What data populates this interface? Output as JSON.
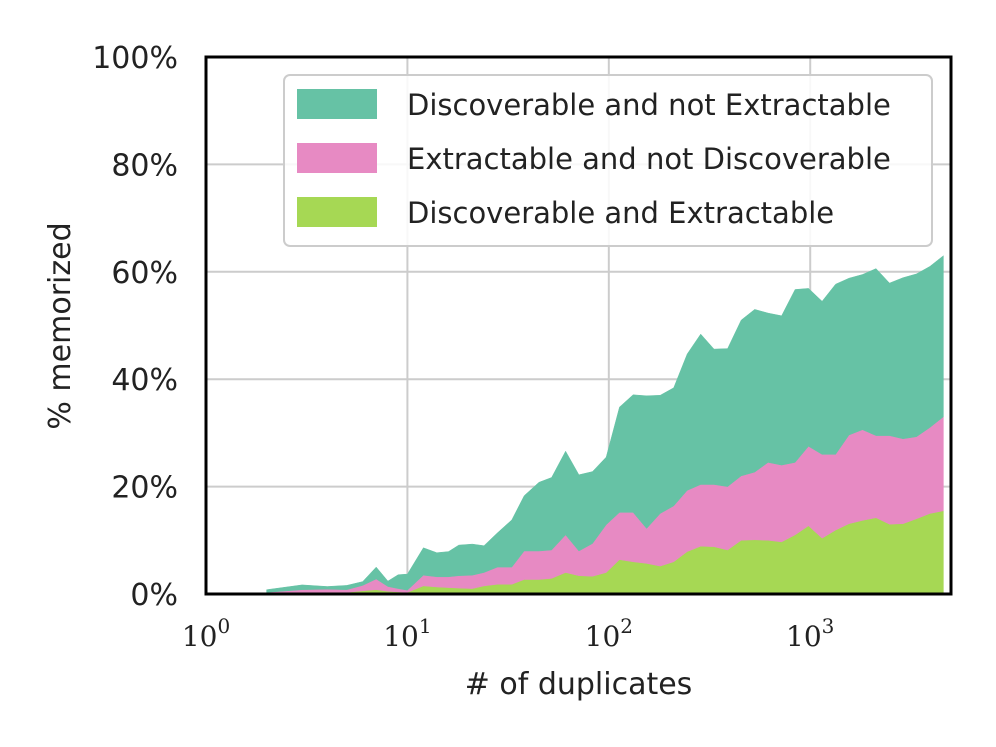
{
  "chart_data": {
    "type": "area",
    "stacked": true,
    "x_scale": "log",
    "xlabel": "# of duplicates",
    "ylabel": "% memorized",
    "xlim": [
      1,
      5000
    ],
    "ylim": [
      0,
      100
    ],
    "x_ticks": [
      {
        "base": "10",
        "exp": "0",
        "value": 1
      },
      {
        "base": "10",
        "exp": "1",
        "value": 10
      },
      {
        "base": "10",
        "exp": "2",
        "value": 100
      },
      {
        "base": "10",
        "exp": "3",
        "value": 1000
      }
    ],
    "y_ticks": [
      {
        "label": "0%",
        "value": 0
      },
      {
        "label": "20%",
        "value": 20
      },
      {
        "label": "40%",
        "value": 40
      },
      {
        "label": "60%",
        "value": 60
      },
      {
        "label": "80%",
        "value": 80
      },
      {
        "label": "100%",
        "value": 100
      }
    ],
    "grid": true,
    "legend_position": "top-right",
    "x": [
      2,
      3,
      4,
      5,
      6,
      7,
      8,
      9,
      10,
      12,
      14,
      16,
      18,
      21,
      24,
      28,
      33,
      38,
      45,
      52,
      61,
      71,
      83,
      97,
      113,
      132,
      154,
      180,
      210,
      245,
      286,
      333,
      389,
      454,
      530,
      618,
      721,
      841,
      981,
      1145,
      1336,
      1558,
      1818,
      2121,
      2475,
      2887,
      3369,
      3930,
      4586
    ],
    "series": [
      {
        "name": "Discoverable and Extractable",
        "color": "#a6d854",
        "values": [
          0,
          0,
          0.3,
          0.3,
          0.6,
          0.8,
          0.5,
          0.4,
          0.3,
          1.5,
          1.3,
          1.2,
          1.1,
          1.0,
          1.5,
          1.8,
          1.8,
          2.7,
          2.7,
          2.9,
          4.0,
          3.4,
          3.3,
          4.0,
          6.4,
          6.0,
          5.7,
          5.2,
          6.0,
          7.9,
          8.9,
          8.8,
          8.2,
          10.0,
          10.1,
          10.0,
          9.7,
          11.0,
          12.7,
          10.4,
          11.9,
          13.1,
          13.7,
          14.2,
          13.0,
          13.1,
          14.0,
          15.0,
          15.5
        ]
      },
      {
        "name": "Extractable and not Discoverable",
        "color": "#e78ac3",
        "values": [
          0.3,
          0.8,
          0.6,
          0.5,
          1.0,
          2.0,
          0.9,
          0.6,
          0.4,
          2.0,
          1.9,
          2.0,
          2.3,
          2.5,
          2.5,
          3.2,
          3.2,
          5.3,
          5.3,
          5.3,
          7.0,
          4.6,
          6.1,
          8.9,
          8.8,
          9.2,
          6.5,
          9.8,
          10.4,
          11.4,
          11.5,
          11.6,
          11.8,
          12.0,
          12.6,
          14.5,
          14.3,
          13.5,
          14.8,
          15.6,
          14.1,
          16.5,
          16.9,
          15.3,
          16.5,
          15.8,
          15.3,
          16.0,
          17.5
        ]
      },
      {
        "name": "Discoverable and not Extractable",
        "color": "#66c2a5",
        "values": [
          0.5,
          0.9,
          0.5,
          0.8,
          0.7,
          2.2,
          1.0,
          2.6,
          3.0,
          5.1,
          4.5,
          4.7,
          5.7,
          5.8,
          5.0,
          6.4,
          8.8,
          10.3,
          12.8,
          13.5,
          15.6,
          14.2,
          13.4,
          12.6,
          19.6,
          21.9,
          24.7,
          22.0,
          22.0,
          25.4,
          28.0,
          25.2,
          25.7,
          29.0,
          30.3,
          27.8,
          27.8,
          32.2,
          29.4,
          28.5,
          31.7,
          29.2,
          28.9,
          31.1,
          28.4,
          30.0,
          30.3,
          30.0,
          30.0
        ]
      }
    ]
  }
}
